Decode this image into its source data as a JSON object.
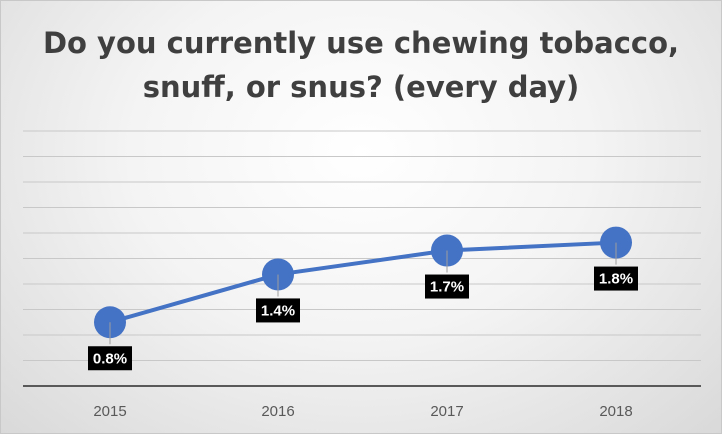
{
  "chart_data": {
    "type": "line",
    "title": "Do you currently use chewing tobacco, snuff, or snus? (every day)",
    "categories": [
      "2015",
      "2016",
      "2017",
      "2018"
    ],
    "series": [
      {
        "values": [
          0.8,
          1.4,
          1.7,
          1.8
        ]
      }
    ],
    "data_labels": [
      "0.8%",
      "1.4%",
      "1.7%",
      "1.8%"
    ],
    "ylim": [
      0,
      3.2
    ],
    "grid": true,
    "legend": "none",
    "colors": {
      "line": "#4472C4",
      "marker": "#4472C4",
      "label_bg": "#000000",
      "label_text": "#ffffff",
      "grid": "#c8c8c8",
      "axis": "#595959"
    }
  }
}
